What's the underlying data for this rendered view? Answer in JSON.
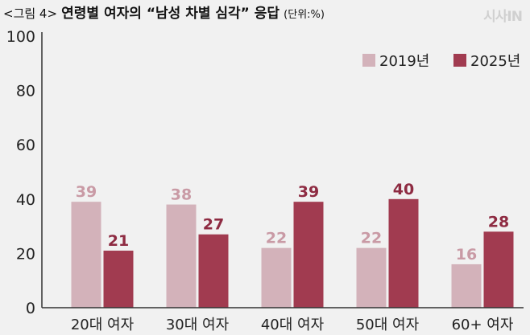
{
  "header": {
    "figure_label": "<그림 4>",
    "title": "연령별 여자의 “남성 차별 심각” 응답",
    "unit": "(단위:%)"
  },
  "watermark": "시사IN",
  "colors": {
    "series_2019": "#d3b2ba",
    "series_2025": "#a13b50",
    "label_2019": "#c99aa5",
    "label_2025": "#8e2b42",
    "background": "#f1f1f1"
  },
  "chart_data": {
    "type": "bar",
    "title": "연령별 여자의 “남성 차별 심각” 응답",
    "xlabel": "",
    "ylabel": "",
    "unit": "%",
    "ylim": [
      0,
      100
    ],
    "yticks": [
      0,
      20,
      40,
      60,
      80,
      100
    ],
    "grid": false,
    "legend_position": "top-right",
    "categories": [
      "20대 여자",
      "30대 여자",
      "40대 여자",
      "50대 여자",
      "60+ 여자"
    ],
    "series": [
      {
        "name": "2019년",
        "values": [
          39,
          38,
          22,
          22,
          16
        ]
      },
      {
        "name": "2025년",
        "values": [
          21,
          27,
          39,
          40,
          28
        ]
      }
    ]
  }
}
